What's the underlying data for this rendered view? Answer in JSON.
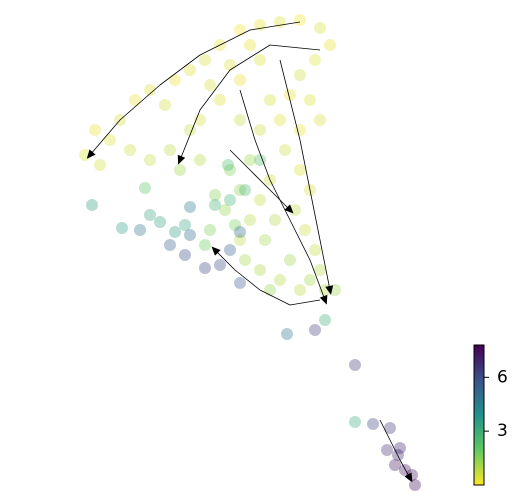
{
  "chart_data": {
    "type": "scatter",
    "xlim": [
      0,
      525
    ],
    "ylim": [
      501,
      0
    ],
    "x": [
      85,
      100,
      95,
      110,
      120,
      135,
      150,
      165,
      175,
      190,
      205,
      220,
      240,
      260,
      280,
      300,
      320,
      330,
      315,
      300,
      290,
      310,
      320,
      300,
      285,
      300,
      310,
      295,
      305,
      315,
      320,
      325,
      300,
      280,
      260,
      245,
      240,
      250,
      260,
      270,
      250,
      230,
      240,
      225,
      210,
      200,
      180,
      170,
      150,
      130,
      200,
      220,
      240,
      260,
      270,
      280,
      260,
      240,
      250,
      230,
      210,
      190,
      265,
      275,
      290,
      270,
      310,
      335,
      215,
      235,
      205,
      92,
      122,
      150,
      160,
      175,
      230,
      245,
      145,
      355,
      325,
      260,
      228,
      215,
      185,
      140,
      170,
      185,
      190,
      190,
      240,
      205,
      220,
      230,
      287,
      315,
      355,
      240,
      373,
      390,
      387,
      400,
      395,
      405,
      412,
      415,
      398
    ],
    "y": [
      155,
      165,
      130,
      140,
      120,
      100,
      90,
      105,
      80,
      70,
      60,
      45,
      30,
      25,
      22,
      20,
      28,
      45,
      60,
      75,
      95,
      100,
      120,
      130,
      150,
      170,
      190,
      210,
      230,
      250,
      270,
      290,
      290,
      280,
      270,
      260,
      240,
      220,
      200,
      180,
      160,
      170,
      190,
      210,
      230,
      160,
      170,
      150,
      160,
      150,
      120,
      100,
      80,
      60,
      100,
      120,
      130,
      120,
      45,
      65,
      85,
      130,
      240,
      220,
      260,
      290,
      280,
      290,
      195,
      225,
      245,
      205,
      228,
      215,
      222,
      232,
      200,
      190,
      188,
      422,
      320,
      160,
      165,
      205,
      225,
      230,
      245,
      255,
      235,
      207,
      232,
      268,
      265,
      250,
      334,
      330,
      365,
      283,
      424,
      428,
      450,
      448,
      465,
      470,
      475,
      485,
      455
    ],
    "values": [
      0.4,
      0.5,
      0.3,
      0.4,
      0.5,
      0.3,
      0.4,
      0.6,
      0.3,
      0.4,
      0.5,
      0.3,
      0.2,
      0.3,
      0.4,
      0.2,
      0.5,
      0.3,
      0.4,
      0.6,
      0.3,
      0.4,
      0.5,
      0.3,
      0.6,
      0.4,
      0.5,
      0.8,
      0.6,
      0.7,
      0.9,
      1.0,
      0.8,
      0.9,
      1.0,
      1.1,
      0.8,
      0.9,
      0.7,
      0.6,
      1.2,
      1.5,
      1.4,
      1.3,
      1.6,
      0.9,
      1.2,
      0.8,
      0.7,
      0.6,
      0.5,
      0.4,
      0.3,
      0.4,
      0.5,
      0.4,
      0.6,
      0.7,
      0.3,
      0.4,
      0.5,
      0.7,
      1.1,
      1.0,
      1.2,
      1.3,
      1.1,
      1.2,
      1.5,
      1.7,
      1.8,
      3.4,
      3.6,
      3.2,
      3.3,
      3.4,
      2.8,
      2.6,
      2.2,
      3.1,
      3.0,
      2.4,
      2.5,
      2.7,
      3.2,
      4.8,
      5.5,
      6.0,
      5.2,
      4.6,
      5.0,
      6.2,
      6.0,
      5.5,
      4.8,
      6.4,
      6.5,
      5.6,
      6.2,
      6.6,
      6.8,
      7.0,
      7.2,
      7.4,
      7.3,
      7.5,
      6.9
    ],
    "clim": [
      0,
      7.8
    ],
    "cticks": [
      3,
      6
    ],
    "colormap": "viridis_r",
    "opacity": 0.35,
    "streamlines": [
      {
        "x": [
          300,
          250,
          200,
          160,
          120,
          90
        ],
        "y": [
          22,
          30,
          55,
          85,
          120,
          155
        ]
      },
      {
        "x": [
          320,
          270,
          230,
          200,
          180
        ],
        "y": [
          50,
          45,
          70,
          110,
          160
        ]
      },
      {
        "x": [
          280,
          290,
          300,
          310,
          320,
          330
        ],
        "y": [
          60,
          100,
          140,
          190,
          240,
          290
        ]
      },
      {
        "x": [
          240,
          255,
          270,
          290,
          310,
          325
        ],
        "y": [
          90,
          140,
          180,
          220,
          260,
          300
        ]
      },
      {
        "x": [
          320,
          290,
          260,
          235,
          215
        ],
        "y": [
          300,
          305,
          290,
          270,
          250
        ]
      },
      {
        "x": [
          230,
          250,
          270,
          290
        ],
        "y": [
          150,
          170,
          190,
          210
        ]
      },
      {
        "x": [
          380,
          390,
          400,
          410
        ],
        "y": [
          420,
          440,
          460,
          478
        ]
      }
    ]
  }
}
